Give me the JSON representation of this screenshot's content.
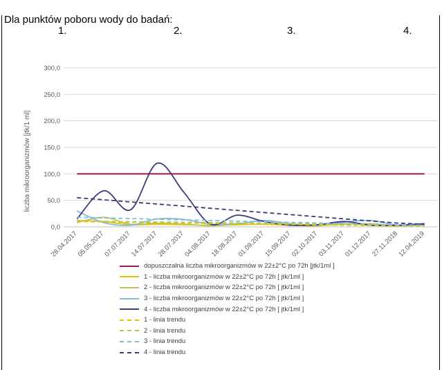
{
  "heading": "Dla punktów poboru wody do badań:",
  "point_labels": [
    "1.",
    "2.",
    "3.",
    "4."
  ],
  "chart_data": {
    "type": "line",
    "ylabel": "liczba mikroorganizmów [jtk/1 ml]",
    "ylim": [
      0,
      300
    ],
    "yticks": [
      "0,0",
      "50,0",
      "100,0",
      "150,0",
      "200,0",
      "250,0",
      "300,0"
    ],
    "categories": [
      "28.04.2017",
      "05.05.2017",
      "07.07.2017",
      "14.07.2017",
      "28.07.2017",
      "04.08.2017",
      "18.08.2017",
      "01.09.2017",
      "15.09.2017",
      "02.10.2017",
      "03.11.2017",
      "01.12.2017",
      "27.11.2018",
      "12.04.2019"
    ],
    "series": [
      {
        "name": "dopuszczalna liczba mikroorganizmów w 22±2°C po 72h [jtk/1ml ]",
        "color": "#a3174a",
        "dash": false,
        "values": [
          100,
          100,
          100,
          100,
          100,
          100,
          100,
          100,
          100,
          100,
          100,
          100,
          100,
          100
        ]
      },
      {
        "name": "1 - liczba mikroorganizmów w 22±2°C po 72h [ jtk/1ml ]",
        "color": "#e2c200",
        "dash": false,
        "values": [
          12,
          10,
          4,
          5,
          4,
          3,
          4,
          5,
          3,
          2,
          6,
          3,
          2,
          3
        ]
      },
      {
        "name": "2 - liczba mikroorganizmów w 22±2°C po 72h [ jtk/1ml ]",
        "color": "#bfc35a",
        "dash": false,
        "values": [
          8,
          18,
          5,
          7,
          5,
          2,
          5,
          12,
          6,
          3,
          5,
          6,
          2,
          4
        ]
      },
      {
        "name": "3 - liczba mikroorganizmów w 22±2°C po 72h [ jtk/1ml ]",
        "color": "#7dbed8",
        "dash": false,
        "values": [
          30,
          8,
          3,
          15,
          14,
          5,
          6,
          12,
          5,
          3,
          9,
          12,
          3,
          4
        ]
      },
      {
        "name": "4 - liczba mikroorganizmów w 22±2°C po 72h [ jtk/1ml ]",
        "color": "#3a3a7c",
        "dash": false,
        "values": [
          15,
          68,
          32,
          120,
          65,
          5,
          22,
          10,
          3,
          4,
          10,
          3,
          3,
          6
        ]
      },
      {
        "name": "1 - linia trendu",
        "color": "#e2c200",
        "dash": true,
        "values": [
          10,
          9.3,
          8.6,
          7.9,
          7.2,
          6.5,
          5.8,
          5.1,
          4.4,
          3.7,
          3.0,
          2.5,
          2.0,
          1.8
        ]
      },
      {
        "name": "2 - linia trendu",
        "color": "#bfc35a",
        "dash": true,
        "values": [
          11,
          10.4,
          9.8,
          9.2,
          8.6,
          8.0,
          7.4,
          6.8,
          6.2,
          5.6,
          5.0,
          4.4,
          3.8,
          3.4
        ]
      },
      {
        "name": "3 - linia trendu",
        "color": "#7dbed8",
        "dash": true,
        "values": [
          18,
          16.8,
          15.6,
          14.4,
          13.2,
          12.0,
          10.8,
          9.6,
          8.4,
          7.2,
          6.0,
          4.8,
          3.6,
          2.8
        ]
      },
      {
        "name": "4 - linia trendu",
        "color": "#3a3a7c",
        "dash": true,
        "values": [
          55,
          51,
          47,
          43,
          39,
          35,
          31,
          27,
          23,
          19,
          15,
          11,
          7,
          5
        ]
      }
    ],
    "grid": true,
    "legend_position": "bottom"
  }
}
